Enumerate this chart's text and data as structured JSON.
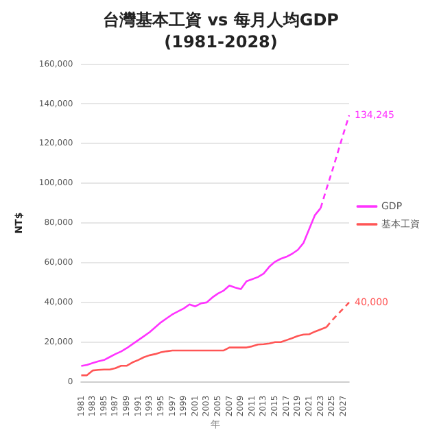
{
  "chart_data": {
    "type": "line",
    "title": "台灣基本工資 vs 每月人均GDP",
    "subtitle": "(1981-2028)",
    "xlabel": "年",
    "ylabel": "NT$",
    "categories": [
      "1981",
      null,
      "1983",
      null,
      "1985",
      null,
      "1987",
      null,
      "1989",
      null,
      "1991",
      null,
      "1993",
      null,
      "1995",
      null,
      "1997",
      null,
      "1999",
      null,
      "2001",
      null,
      "2003",
      null,
      "2005",
      null,
      "2007",
      null,
      "2009",
      null,
      "2011",
      null,
      "2013",
      null,
      "2015",
      null,
      "2017",
      null,
      "2019",
      null,
      "2021",
      null,
      "2023",
      null,
      "2025",
      null,
      "2027",
      null
    ],
    "series": [
      {
        "name": "GDP",
        "color": "#ff33ff",
        "line_style": "solid",
        "values": [
          8000,
          8500,
          9500,
          10300,
          11000,
          12500,
          14000,
          15300,
          17000,
          19000,
          21000,
          23000,
          25000,
          27500,
          30000,
          32000,
          34000,
          35500,
          37000,
          39000,
          38000,
          39500,
          40000,
          42500,
          44500,
          46000,
          48500,
          47500,
          46700,
          50700,
          51700,
          52800,
          54500,
          58000,
          60500,
          62000,
          63000,
          64500,
          66500,
          70000,
          77000,
          84000,
          87500,
          null,
          null,
          null,
          null,
          null
        ]
      },
      {
        "name": "基本工資",
        "color": "#ff5555",
        "line_style": "solid",
        "values": [
          3300,
          3300,
          5700,
          6000,
          6200,
          6200,
          6900,
          8100,
          8100,
          9800,
          11000,
          12400,
          13400,
          14000,
          14900,
          15400,
          15800,
          15800,
          15800,
          15800,
          15800,
          15800,
          15800,
          15800,
          15800,
          15800,
          17300,
          17300,
          17300,
          17300,
          17900,
          18800,
          19000,
          19300,
          20000,
          20000,
          21000,
          22000,
          23100,
          23800,
          24000,
          25300,
          26400,
          27500,
          null,
          null,
          null,
          null
        ]
      },
      {
        "color": "#ff33ff",
        "line_style": "dashed",
        "values": [
          null,
          null,
          null,
          null,
          null,
          null,
          null,
          null,
          null,
          null,
          null,
          null,
          null,
          null,
          null,
          null,
          null,
          null,
          null,
          null,
          null,
          null,
          null,
          null,
          null,
          null,
          null,
          null,
          null,
          null,
          null,
          null,
          null,
          null,
          null,
          null,
          null,
          null,
          null,
          null,
          null,
          null,
          87500,
          97000,
          106000,
          115500,
          125000,
          134245
        ],
        "value_labels": [
          null,
          null,
          null,
          null,
          null,
          null,
          null,
          null,
          null,
          null,
          null,
          null,
          null,
          null,
          null,
          null,
          null,
          null,
          null,
          null,
          null,
          null,
          null,
          null,
          null,
          null,
          null,
          null,
          null,
          null,
          null,
          null,
          null,
          null,
          null,
          null,
          null,
          null,
          null,
          null,
          null,
          null,
          null,
          null,
          null,
          null,
          null,
          "134,245"
        ]
      },
      {
        "color": "#ff5555",
        "line_style": "dashed",
        "values": [
          null,
          null,
          null,
          null,
          null,
          null,
          null,
          null,
          null,
          null,
          null,
          null,
          null,
          null,
          null,
          null,
          null,
          null,
          null,
          null,
          null,
          null,
          null,
          null,
          null,
          null,
          null,
          null,
          null,
          null,
          null,
          null,
          null,
          null,
          null,
          null,
          null,
          null,
          null,
          null,
          null,
          null,
          null,
          27500,
          31000,
          34000,
          37000,
          40000
        ],
        "value_labels": [
          null,
          null,
          null,
          null,
          null,
          null,
          null,
          null,
          null,
          null,
          null,
          null,
          null,
          null,
          null,
          null,
          null,
          null,
          null,
          null,
          null,
          null,
          null,
          null,
          null,
          null,
          null,
          null,
          null,
          null,
          null,
          null,
          null,
          null,
          null,
          null,
          null,
          null,
          null,
          null,
          null,
          null,
          null,
          null,
          null,
          null,
          null,
          "40,000"
        ]
      }
    ],
    "ylim": [
      0,
      160000
    ],
    "yticks": [
      0,
      {
        "value": 20000,
        "label": "20,000"
      },
      {
        "value": 40000,
        "label": "40,000"
      },
      {
        "value": 60000,
        "label": "60,000"
      },
      {
        "value": 80000,
        "label": "80,000"
      },
      {
        "value": 100000,
        "label": "100,000"
      },
      {
        "value": 120000,
        "label": "120,000"
      },
      {
        "value": 140000,
        "label": "140,000"
      },
      {
        "value": 160000,
        "label": "160,000"
      }
    ],
    "grid": "y",
    "legend": "right",
    "marker": "none"
  }
}
